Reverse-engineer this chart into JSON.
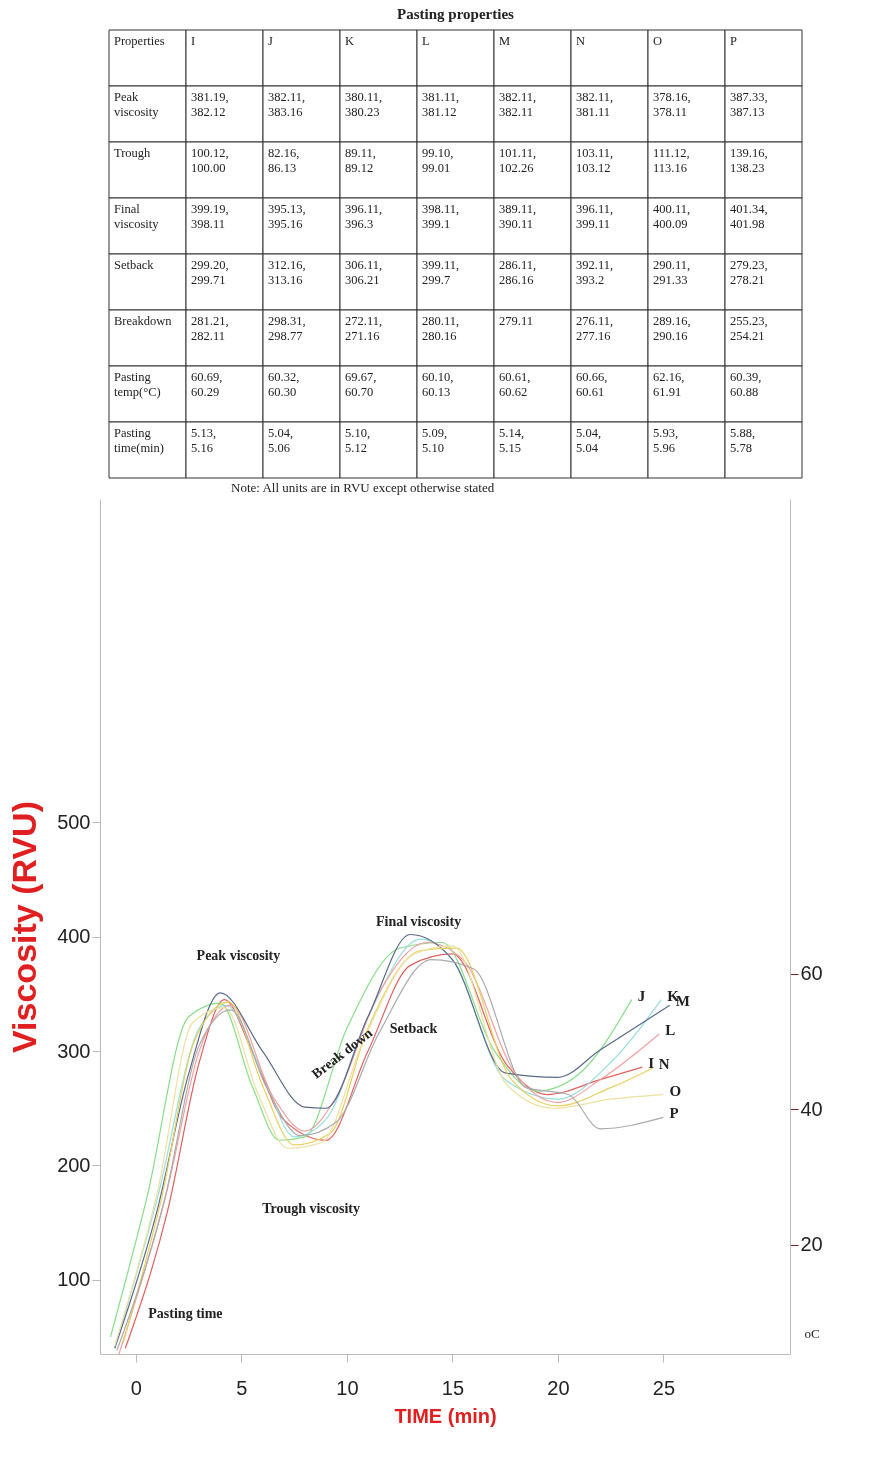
{
  "chart_data": [
    {
      "type": "other",
      "title": "Pasting properties",
      "categories": [
        "Properties",
        "I",
        "J",
        "K",
        "L",
        "M",
        "N",
        "O",
        "P"
      ],
      "y_categories": [
        "Peak viscosity",
        "Trough",
        "Final viscosity",
        "Setback",
        "Breakdown",
        "Pasting temp(°C)",
        "Pasting time(min)"
      ],
      "cell_labels": [
        [
          "381.19, 382.12",
          "382.11,383.16",
          "380.11, 380.23",
          "381.11, 381.12",
          "382.11,382.11",
          "382.11,381.11",
          "378.16, 378.11",
          "387.33, 387.13"
        ],
        [
          "100.12, 100.00",
          "82.16,86.13",
          "89.11,89.12",
          "99.10,99.01",
          "101.11,102.26",
          "103.11,103.12",
          "111.12, 113.16",
          "139.16, 138.23"
        ],
        [
          "399.19, 398.11",
          "395.13,395.16",
          "396.11, 396.3",
          "398.11, 399.1",
          "389.11, 390.11",
          "396.11, 399.11",
          "400.11, 400.09",
          "401.34, 401.98"
        ],
        [
          "299.20, 299.71",
          "312.16,313.16",
          "306.11, 306.21",
          "399.11, 299.7",
          "286.11,286.16",
          "392.11,393.2",
          "290.11, 291.33",
          "279.23, 278.21"
        ],
        [
          "281.21, 282.11",
          "298.31,298.77",
          "272.11, 271.16",
          "280.11, 280.16",
          "279.11",
          "276.11,277.16",
          "289.16, 290.16",
          "255.23, 254.21"
        ],
        [
          "60.69,60.29",
          "60.32,60.30",
          "69.67, 60.70",
          "60.10, 60.13",
          "60.61,60.62",
          "60.66, 60.61",
          "62.16,61.91",
          "60.39,60.88"
        ],
        [
          "5.13,5.16",
          "5.04, 5.06",
          "5.10, 5.12",
          "5.09,5.10",
          "5.14,5.15",
          "5.04,5.04",
          "5.93,5.96",
          "5.88,5.78"
        ]
      ],
      "annotations": [
        "Note: All units are in RVU except otherwise stated"
      ]
    },
    {
      "type": "line",
      "xlabel": "TIME (min)",
      "ylabel": "Viscosity (RVU)",
      "y2label": "oC",
      "xlim": [
        -1.7,
        31
      ],
      "xticks": [
        0,
        5,
        10,
        15,
        20,
        25
      ],
      "ylim": [
        35,
        783
      ],
      "yticks": [
        100,
        200,
        300,
        400,
        500
      ],
      "y2lim": [
        3.9,
        130
      ],
      "y2ticks": [
        20,
        40,
        60
      ],
      "series": [
        {
          "name": "I",
          "color": "#e06060",
          "x": [
            -0.5,
            1.5,
            3,
            4.2,
            5.5,
            7,
            9,
            11,
            13,
            15,
            17.5,
            19.5,
            22,
            24
          ],
          "values": [
            40,
            160,
            290,
            345,
            300,
            240,
            222,
            300,
            375,
            385,
            290,
            262,
            275,
            286
          ]
        },
        {
          "name": "J",
          "color": "#88dd88",
          "x": [
            -1.2,
            0.5,
            2.5,
            4,
            5.5,
            6.8,
            8,
            10,
            12.5,
            14.5,
            17,
            19,
            21,
            23.5
          ],
          "values": [
            50,
            170,
            330,
            342,
            270,
            222,
            225,
            320,
            390,
            395,
            300,
            265,
            280,
            345
          ]
        },
        {
          "name": "K",
          "color": "#99dddd",
          "x": [
            -1,
            1,
            3,
            4.3,
            6,
            7.5,
            9,
            11,
            13.5,
            15,
            17.5,
            20,
            22.5,
            24.9
          ],
          "values": [
            40,
            170,
            320,
            340,
            280,
            225,
            240,
            330,
            398,
            380,
            275,
            258,
            290,
            345
          ]
        },
        {
          "name": "L",
          "color": "#f0a0a0",
          "x": [
            -0.8,
            1.5,
            3,
            4.5,
            6.5,
            8,
            9.5,
            11.5,
            13.8,
            15.5,
            18,
            20,
            22,
            24.8
          ],
          "values": [
            35,
            180,
            300,
            340,
            260,
            230,
            260,
            350,
            395,
            380,
            280,
            255,
            275,
            315
          ]
        },
        {
          "name": "M",
          "color": "#5a6a8a",
          "x": [
            -1,
            1,
            2.5,
            4,
            6,
            8,
            9,
            11,
            13,
            15,
            17.5,
            20,
            22,
            25.3
          ],
          "values": [
            40,
            160,
            280,
            351,
            300,
            251,
            250,
            330,
            402,
            380,
            281,
            277,
            301,
            340
          ]
        },
        {
          "name": "N",
          "color": "#e8d060",
          "x": [
            -0.6,
            1.2,
            2.8,
            4.4,
            6,
            7.5,
            9.2,
            11,
            13.5,
            15.2,
            17.8,
            20,
            22.5,
            24.5
          ],
          "values": [
            45,
            170,
            310,
            343,
            270,
            218,
            228,
            320,
            388,
            390,
            275,
            252,
            268,
            285
          ]
        },
        {
          "name": "O",
          "color": "#eee0a0",
          "x": [
            -1,
            1,
            2.7,
            4.2,
            5.8,
            7.2,
            8.8,
            10.8,
            13.2,
            15,
            17.6,
            19.8,
            22.5,
            25
          ],
          "values": [
            42,
            175,
            325,
            338,
            262,
            215,
            220,
            310,
            385,
            392,
            270,
            250,
            258,
            262
          ]
        },
        {
          "name": "P",
          "color": "#aaaaaa",
          "x": [
            -0.9,
            1.3,
            3,
            4.5,
            6.2,
            7.8,
            9.5,
            11.5,
            14,
            16,
            18.5,
            20.5,
            22,
            25
          ],
          "values": [
            38,
            165,
            305,
            336,
            268,
            226,
            238,
            315,
            380,
            372,
            268,
            262,
            232,
            242
          ]
        }
      ],
      "annotations": [
        "Peak viscosity",
        "Trough viscosity",
        "Break down",
        "Final viscosity",
        "Setback",
        "Pasting time"
      ]
    }
  ]
}
